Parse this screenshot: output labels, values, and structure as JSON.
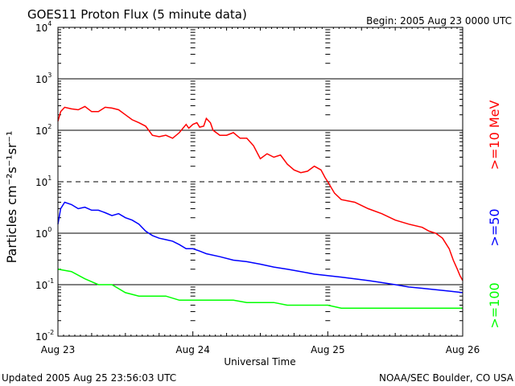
{
  "header": {
    "title": "GOES11 Proton Flux (5 minute data)",
    "begin": "Begin: 2005 Aug 23 0000 UTC"
  },
  "footer": {
    "updated": "Updated 2005 Aug 25 23:56:03 UTC",
    "source": "NOAA/SEC Boulder, CO USA"
  },
  "chart_data": {
    "type": "line",
    "title": "GOES11 Proton Flux (5 minute data)",
    "xlabel": "Universal Time",
    "ylabel": "Particles cm⁻²s⁻¹sr⁻¹",
    "y_scale": "log",
    "ylim": [
      0.01,
      10000
    ],
    "y_ticks": [
      {
        "value": 0.01,
        "base": "10",
        "exp": "-2"
      },
      {
        "value": 0.1,
        "base": "10",
        "exp": "-1"
      },
      {
        "value": 1,
        "base": "10",
        "exp": "0"
      },
      {
        "value": 10,
        "base": "10",
        "exp": "1"
      },
      {
        "value": 100,
        "base": "10",
        "exp": "2"
      },
      {
        "value": 1000,
        "base": "10",
        "exp": "3"
      },
      {
        "value": 10000,
        "base": "10",
        "exp": "4"
      }
    ],
    "x_ticks": [
      "Aug 23",
      "Aug 24",
      "Aug 25",
      "Aug 26"
    ],
    "x_unit": "days since 2005 Aug 23 0000 UTC",
    "xlim": [
      0,
      3
    ],
    "grid": {
      "horizontal_solid": [
        0.1,
        1,
        100,
        1000
      ],
      "horizontal_dashed": [
        10
      ]
    },
    "series": [
      {
        "name": ">=10 MeV",
        "color": "#ff0000",
        "x": [
          0,
          0.02,
          0.05,
          0.1,
          0.15,
          0.2,
          0.25,
          0.3,
          0.35,
          0.4,
          0.45,
          0.5,
          0.55,
          0.6,
          0.65,
          0.7,
          0.75,
          0.8,
          0.85,
          0.9,
          0.95,
          0.97,
          1.0,
          1.03,
          1.05,
          1.08,
          1.1,
          1.13,
          1.15,
          1.2,
          1.25,
          1.3,
          1.35,
          1.4,
          1.45,
          1.5,
          1.55,
          1.6,
          1.65,
          1.7,
          1.75,
          1.8,
          1.85,
          1.9,
          1.95,
          1.98,
          2.0,
          2.05,
          2.1,
          2.2,
          2.3,
          2.4,
          2.5,
          2.6,
          2.7,
          2.75,
          2.8,
          2.85,
          2.9,
          2.93,
          2.96,
          2.98,
          3.0
        ],
        "values": [
          150,
          230,
          280,
          260,
          250,
          290,
          230,
          230,
          280,
          270,
          250,
          200,
          160,
          140,
          120,
          80,
          75,
          80,
          70,
          90,
          130,
          110,
          130,
          140,
          115,
          120,
          170,
          140,
          100,
          80,
          80,
          90,
          70,
          70,
          50,
          28,
          35,
          30,
          33,
          22,
          17,
          15,
          16,
          20,
          17,
          12,
          10,
          6,
          4.5,
          4,
          3,
          2.4,
          1.8,
          1.5,
          1.3,
          1.1,
          1.0,
          0.8,
          0.5,
          0.3,
          0.2,
          0.15,
          0.12
        ]
      },
      {
        "name": ">=50",
        "color": "#0000ff",
        "x": [
          0,
          0.02,
          0.05,
          0.1,
          0.15,
          0.2,
          0.25,
          0.3,
          0.35,
          0.4,
          0.45,
          0.5,
          0.55,
          0.6,
          0.65,
          0.7,
          0.75,
          0.8,
          0.85,
          0.9,
          0.95,
          1.0,
          1.05,
          1.1,
          1.2,
          1.3,
          1.4,
          1.5,
          1.6,
          1.7,
          1.8,
          1.9,
          2.0,
          2.1,
          2.2,
          2.3,
          2.4,
          2.5,
          2.6,
          2.7,
          2.8,
          2.9,
          3.0
        ],
        "values": [
          1.5,
          3.0,
          4.0,
          3.6,
          3.0,
          3.2,
          2.8,
          2.8,
          2.5,
          2.2,
          2.4,
          2.0,
          1.8,
          1.5,
          1.1,
          0.9,
          0.8,
          0.75,
          0.7,
          0.6,
          0.5,
          0.5,
          0.45,
          0.4,
          0.35,
          0.3,
          0.28,
          0.25,
          0.22,
          0.2,
          0.18,
          0.16,
          0.15,
          0.14,
          0.13,
          0.12,
          0.11,
          0.1,
          0.09,
          0.085,
          0.08,
          0.075,
          0.07
        ]
      },
      {
        "name": ">=100",
        "color": "#00ff00",
        "x": [
          0,
          0.1,
          0.2,
          0.3,
          0.4,
          0.5,
          0.6,
          0.7,
          0.8,
          0.9,
          1.0,
          1.1,
          1.2,
          1.3,
          1.4,
          1.5,
          1.6,
          1.7,
          1.8,
          1.9,
          2.0,
          2.1,
          2.2,
          2.3,
          2.4,
          2.5,
          2.6,
          2.7,
          2.8,
          2.9,
          3.0
        ],
        "values": [
          0.2,
          0.18,
          0.13,
          0.1,
          0.1,
          0.07,
          0.06,
          0.06,
          0.06,
          0.05,
          0.05,
          0.05,
          0.05,
          0.05,
          0.045,
          0.045,
          0.045,
          0.04,
          0.04,
          0.04,
          0.04,
          0.035,
          0.035,
          0.035,
          0.035,
          0.035,
          0.035,
          0.035,
          0.035,
          0.035,
          0.035
        ]
      }
    ]
  }
}
